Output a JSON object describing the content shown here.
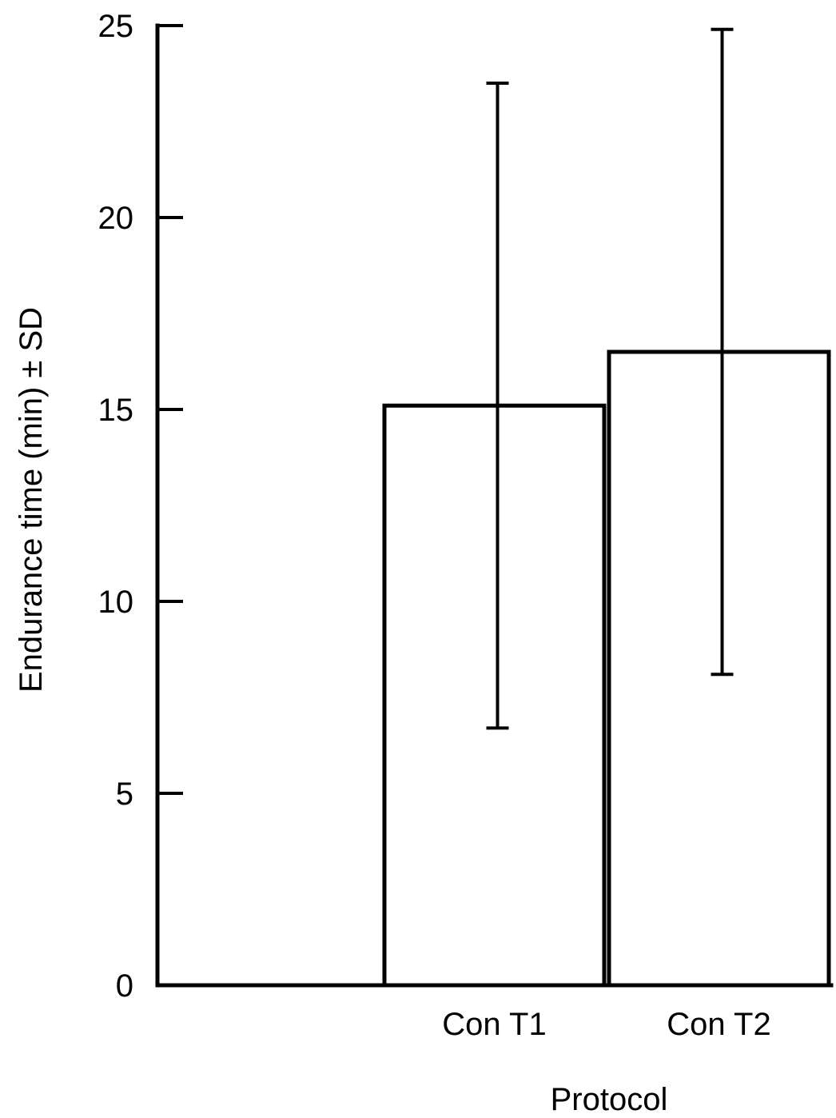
{
  "chart_data": {
    "type": "bar",
    "categories": [
      "",
      "Con T1",
      "Con T2"
    ],
    "values": [
      null,
      15.1,
      16.5
    ],
    "error": [
      null,
      8.4,
      8.4
    ],
    "title": "",
    "xlabel": "Protocol",
    "ylabel": "Endurance time (min) ± SD",
    "ylim": [
      0,
      25
    ],
    "yticks": [
      0,
      5,
      10,
      15,
      20,
      25
    ],
    "ytick_labels": [
      "0",
      "5",
      "10",
      "15",
      "20",
      "25"
    ],
    "grid": false,
    "legend": "none"
  }
}
